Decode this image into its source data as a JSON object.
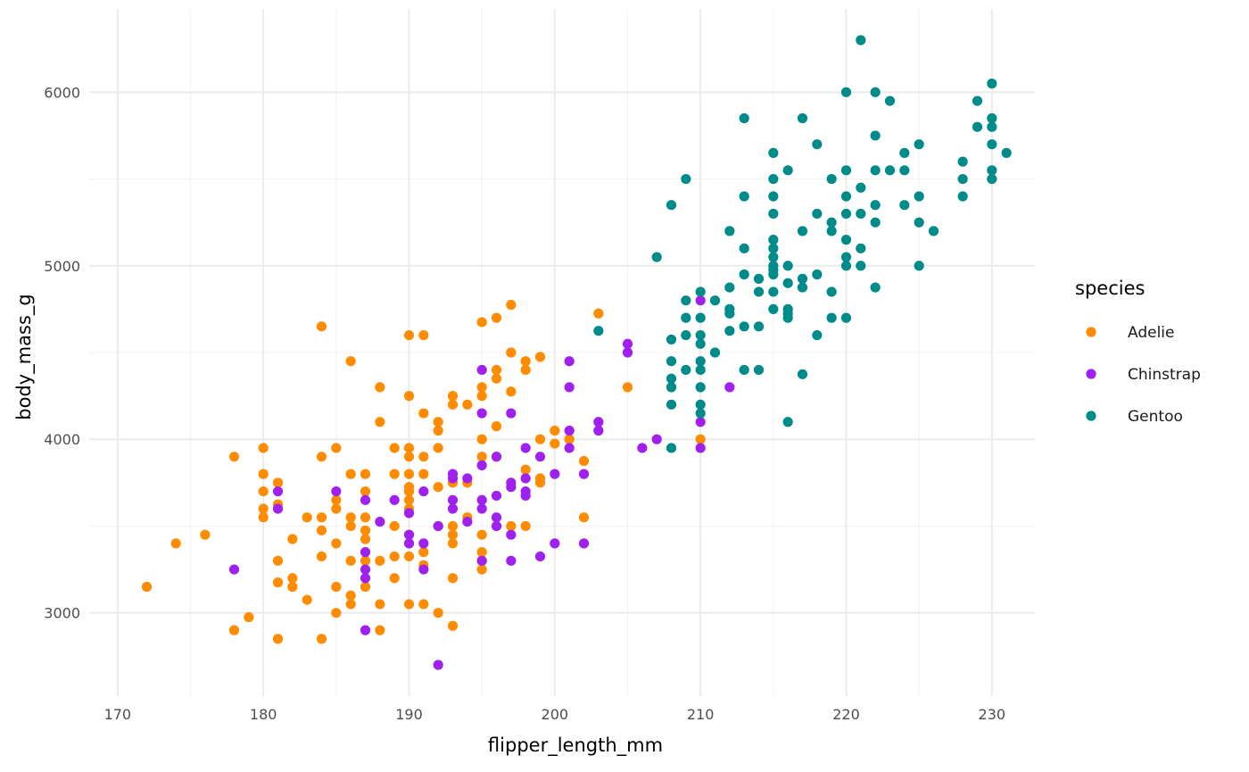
{
  "chart_data": {
    "type": "scatter",
    "xlabel": "flipper_length_mm",
    "ylabel": "body_mass_g",
    "xlim": [
      168.05,
      232.95
    ],
    "ylim": [
      2520,
      6480
    ],
    "x_ticks": [
      170,
      180,
      190,
      200,
      210,
      220,
      230
    ],
    "y_ticks": [
      3000,
      4000,
      5000,
      6000
    ],
    "grid": true,
    "legend": {
      "title": "species",
      "placement": "right"
    },
    "series": [
      {
        "name": "Adelie",
        "color": "#ff8c00",
        "points": [
          [
            172,
            3150
          ],
          [
            174,
            3400
          ],
          [
            176,
            3450
          ],
          [
            178,
            3900
          ],
          [
            178,
            2900
          ],
          [
            179,
            2975
          ],
          [
            180,
            3950
          ],
          [
            180,
            3800
          ],
          [
            180,
            3700
          ],
          [
            180,
            3600
          ],
          [
            180,
            3550
          ],
          [
            181,
            3750
          ],
          [
            181,
            3625
          ],
          [
            181,
            3300
          ],
          [
            181,
            3175
          ],
          [
            181,
            2850
          ],
          [
            182,
            3425
          ],
          [
            182,
            3200
          ],
          [
            182,
            3150
          ],
          [
            183,
            3550
          ],
          [
            183,
            3075
          ],
          [
            184,
            4650
          ],
          [
            184,
            3900
          ],
          [
            184,
            3550
          ],
          [
            184,
            3475
          ],
          [
            184,
            3325
          ],
          [
            184,
            2850
          ],
          [
            185,
            3950
          ],
          [
            185,
            3650
          ],
          [
            185,
            3600
          ],
          [
            185,
            3400
          ],
          [
            185,
            3150
          ],
          [
            185,
            3000
          ],
          [
            186,
            4450
          ],
          [
            186,
            3800
          ],
          [
            186,
            3550
          ],
          [
            186,
            3500
          ],
          [
            186,
            3300
          ],
          [
            186,
            3100
          ],
          [
            186,
            3050
          ],
          [
            187,
            3800
          ],
          [
            187,
            3700
          ],
          [
            187,
            3550
          ],
          [
            187,
            3475
          ],
          [
            187,
            3425
          ],
          [
            187,
            3300
          ],
          [
            187,
            3150
          ],
          [
            188,
            4300
          ],
          [
            188,
            4100
          ],
          [
            188,
            3300
          ],
          [
            188,
            3050
          ],
          [
            188,
            2900
          ],
          [
            189,
            3950
          ],
          [
            189,
            3800
          ],
          [
            189,
            3500
          ],
          [
            189,
            3325
          ],
          [
            189,
            3200
          ],
          [
            190,
            4600
          ],
          [
            190,
            4250
          ],
          [
            190,
            3950
          ],
          [
            190,
            3900
          ],
          [
            190,
            3800
          ],
          [
            190,
            3725
          ],
          [
            190,
            3700
          ],
          [
            190,
            3650
          ],
          [
            190,
            3600
          ],
          [
            190,
            3450
          ],
          [
            190,
            3325
          ],
          [
            190,
            3050
          ],
          [
            191,
            4600
          ],
          [
            191,
            4150
          ],
          [
            191,
            3900
          ],
          [
            191,
            3800
          ],
          [
            191,
            3350
          ],
          [
            191,
            3275
          ],
          [
            191,
            3050
          ],
          [
            192,
            4100
          ],
          [
            192,
            4050
          ],
          [
            192,
            3950
          ],
          [
            192,
            3725
          ],
          [
            192,
            3500
          ],
          [
            192,
            3000
          ],
          [
            193,
            4250
          ],
          [
            193,
            4200
          ],
          [
            193,
            3750
          ],
          [
            193,
            3500
          ],
          [
            193,
            3450
          ],
          [
            193,
            3400
          ],
          [
            193,
            3200
          ],
          [
            193,
            2925
          ],
          [
            194,
            4200
          ],
          [
            194,
            3750
          ],
          [
            194,
            3550
          ],
          [
            195,
            4675
          ],
          [
            195,
            4300
          ],
          [
            195,
            4250
          ],
          [
            195,
            4000
          ],
          [
            195,
            3900
          ],
          [
            195,
            3450
          ],
          [
            195,
            3350
          ],
          [
            195,
            3300
          ],
          [
            195,
            3250
          ],
          [
            196,
            4700
          ],
          [
            196,
            4400
          ],
          [
            196,
            4350
          ],
          [
            196,
            4075
          ],
          [
            196,
            3900
          ],
          [
            197,
            4775
          ],
          [
            197,
            4500
          ],
          [
            197,
            4275
          ],
          [
            197,
            3500
          ],
          [
            198,
            4450
          ],
          [
            198,
            4400
          ],
          [
            198,
            3825
          ],
          [
            198,
            3500
          ],
          [
            199,
            4475
          ],
          [
            199,
            4000
          ],
          [
            199,
            3775
          ],
          [
            199,
            3750
          ],
          [
            200,
            4050
          ],
          [
            200,
            3975
          ],
          [
            201,
            4000
          ],
          [
            202,
            3875
          ],
          [
            202,
            3550
          ],
          [
            203,
            4725
          ],
          [
            205,
            4300
          ],
          [
            208,
            4300
          ],
          [
            210,
            4000
          ]
        ]
      },
      {
        "name": "Chinstrap",
        "color": "#a020f0",
        "points": [
          [
            178,
            3250
          ],
          [
            181,
            3700
          ],
          [
            181,
            3600
          ],
          [
            185,
            3700
          ],
          [
            187,
            3650
          ],
          [
            187,
            3350
          ],
          [
            187,
            3250
          ],
          [
            187,
            3200
          ],
          [
            187,
            2900
          ],
          [
            188,
            3525
          ],
          [
            189,
            3650
          ],
          [
            190,
            3575
          ],
          [
            190,
            3450
          ],
          [
            190,
            3400
          ],
          [
            191,
            3700
          ],
          [
            191,
            3400
          ],
          [
            191,
            3250
          ],
          [
            192,
            2700
          ],
          [
            192,
            3500
          ],
          [
            193,
            3800
          ],
          [
            193,
            3775
          ],
          [
            193,
            3650
          ],
          [
            193,
            3600
          ],
          [
            194,
            3775
          ],
          [
            194,
            3525
          ],
          [
            195,
            4400
          ],
          [
            195,
            4150
          ],
          [
            195,
            3850
          ],
          [
            195,
            3650
          ],
          [
            195,
            3600
          ],
          [
            195,
            3300
          ],
          [
            196,
            3900
          ],
          [
            196,
            3675
          ],
          [
            196,
            3550
          ],
          [
            196,
            3500
          ],
          [
            197,
            4150
          ],
          [
            197,
            3750
          ],
          [
            197,
            3725
          ],
          [
            197,
            3450
          ],
          [
            197,
            3300
          ],
          [
            198,
            3950
          ],
          [
            198,
            3775
          ],
          [
            198,
            3700
          ],
          [
            198,
            3675
          ],
          [
            199,
            3900
          ],
          [
            199,
            3325
          ],
          [
            200,
            3800
          ],
          [
            200,
            3400
          ],
          [
            201,
            4450
          ],
          [
            201,
            4300
          ],
          [
            201,
            4050
          ],
          [
            201,
            3950
          ],
          [
            202,
            3800
          ],
          [
            202,
            3400
          ],
          [
            203,
            4100
          ],
          [
            203,
            4050
          ],
          [
            205,
            4550
          ],
          [
            205,
            4500
          ],
          [
            206,
            3950
          ],
          [
            207,
            4000
          ],
          [
            210,
            4800
          ],
          [
            210,
            4100
          ],
          [
            210,
            3950
          ],
          [
            212,
            4300
          ]
        ]
      },
      {
        "name": "Gentoo",
        "color": "#008b8b",
        "points": [
          [
            203,
            4625
          ],
          [
            207,
            5050
          ],
          [
            208,
            5350
          ],
          [
            208,
            4575
          ],
          [
            208,
            4450
          ],
          [
            208,
            4350
          ],
          [
            208,
            4300
          ],
          [
            208,
            4200
          ],
          [
            208,
            3950
          ],
          [
            209,
            5500
          ],
          [
            209,
            4800
          ],
          [
            209,
            4700
          ],
          [
            209,
            4600
          ],
          [
            209,
            4400
          ],
          [
            210,
            4850
          ],
          [
            210,
            4700
          ],
          [
            210,
            4600
          ],
          [
            210,
            4550
          ],
          [
            210,
            4450
          ],
          [
            210,
            4400
          ],
          [
            210,
            4300
          ],
          [
            210,
            4200
          ],
          [
            210,
            4150
          ],
          [
            211,
            4800
          ],
          [
            211,
            4500
          ],
          [
            212,
            5200
          ],
          [
            212,
            4875
          ],
          [
            212,
            4750
          ],
          [
            212,
            4725
          ],
          [
            212,
            4625
          ],
          [
            213,
            5850
          ],
          [
            213,
            5400
          ],
          [
            213,
            5100
          ],
          [
            213,
            4950
          ],
          [
            213,
            4650
          ],
          [
            213,
            4400
          ],
          [
            214,
            4925
          ],
          [
            214,
            4850
          ],
          [
            214,
            4650
          ],
          [
            214,
            4400
          ],
          [
            215,
            5650
          ],
          [
            215,
            5500
          ],
          [
            215,
            5400
          ],
          [
            215,
            5300
          ],
          [
            215,
            5150
          ],
          [
            215,
            5100
          ],
          [
            215,
            5050
          ],
          [
            215,
            5000
          ],
          [
            215,
            4975
          ],
          [
            215,
            4950
          ],
          [
            215,
            4850
          ],
          [
            215,
            4750
          ],
          [
            216,
            5550
          ],
          [
            216,
            5000
          ],
          [
            216,
            4900
          ],
          [
            216,
            4750
          ],
          [
            216,
            4725
          ],
          [
            216,
            4700
          ],
          [
            216,
            4100
          ],
          [
            217,
            5850
          ],
          [
            217,
            5200
          ],
          [
            217,
            4925
          ],
          [
            217,
            4875
          ],
          [
            217,
            4375
          ],
          [
            218,
            5700
          ],
          [
            218,
            5300
          ],
          [
            218,
            4950
          ],
          [
            218,
            4600
          ],
          [
            219,
            5500
          ],
          [
            219,
            5250
          ],
          [
            219,
            5200
          ],
          [
            219,
            4850
          ],
          [
            219,
            4700
          ],
          [
            220,
            6000
          ],
          [
            220,
            5550
          ],
          [
            220,
            5400
          ],
          [
            220,
            5300
          ],
          [
            220,
            5150
          ],
          [
            220,
            5050
          ],
          [
            220,
            5000
          ],
          [
            220,
            4700
          ],
          [
            221,
            6300
          ],
          [
            221,
            5450
          ],
          [
            221,
            5300
          ],
          [
            221,
            5100
          ],
          [
            221,
            5000
          ],
          [
            222,
            6000
          ],
          [
            222,
            5750
          ],
          [
            222,
            5550
          ],
          [
            222,
            5350
          ],
          [
            222,
            5250
          ],
          [
            222,
            4875
          ],
          [
            223,
            5950
          ],
          [
            223,
            5550
          ],
          [
            224,
            5650
          ],
          [
            224,
            5550
          ],
          [
            224,
            5350
          ],
          [
            225,
            5700
          ],
          [
            225,
            5400
          ],
          [
            225,
            5250
          ],
          [
            225,
            5000
          ],
          [
            226,
            5200
          ],
          [
            228,
            5600
          ],
          [
            228,
            5500
          ],
          [
            228,
            5400
          ],
          [
            229,
            5950
          ],
          [
            229,
            5800
          ],
          [
            230,
            6050
          ],
          [
            230,
            5850
          ],
          [
            230,
            5800
          ],
          [
            230,
            5700
          ],
          [
            230,
            5550
          ],
          [
            230,
            5500
          ],
          [
            231,
            5650
          ]
        ]
      }
    ]
  }
}
